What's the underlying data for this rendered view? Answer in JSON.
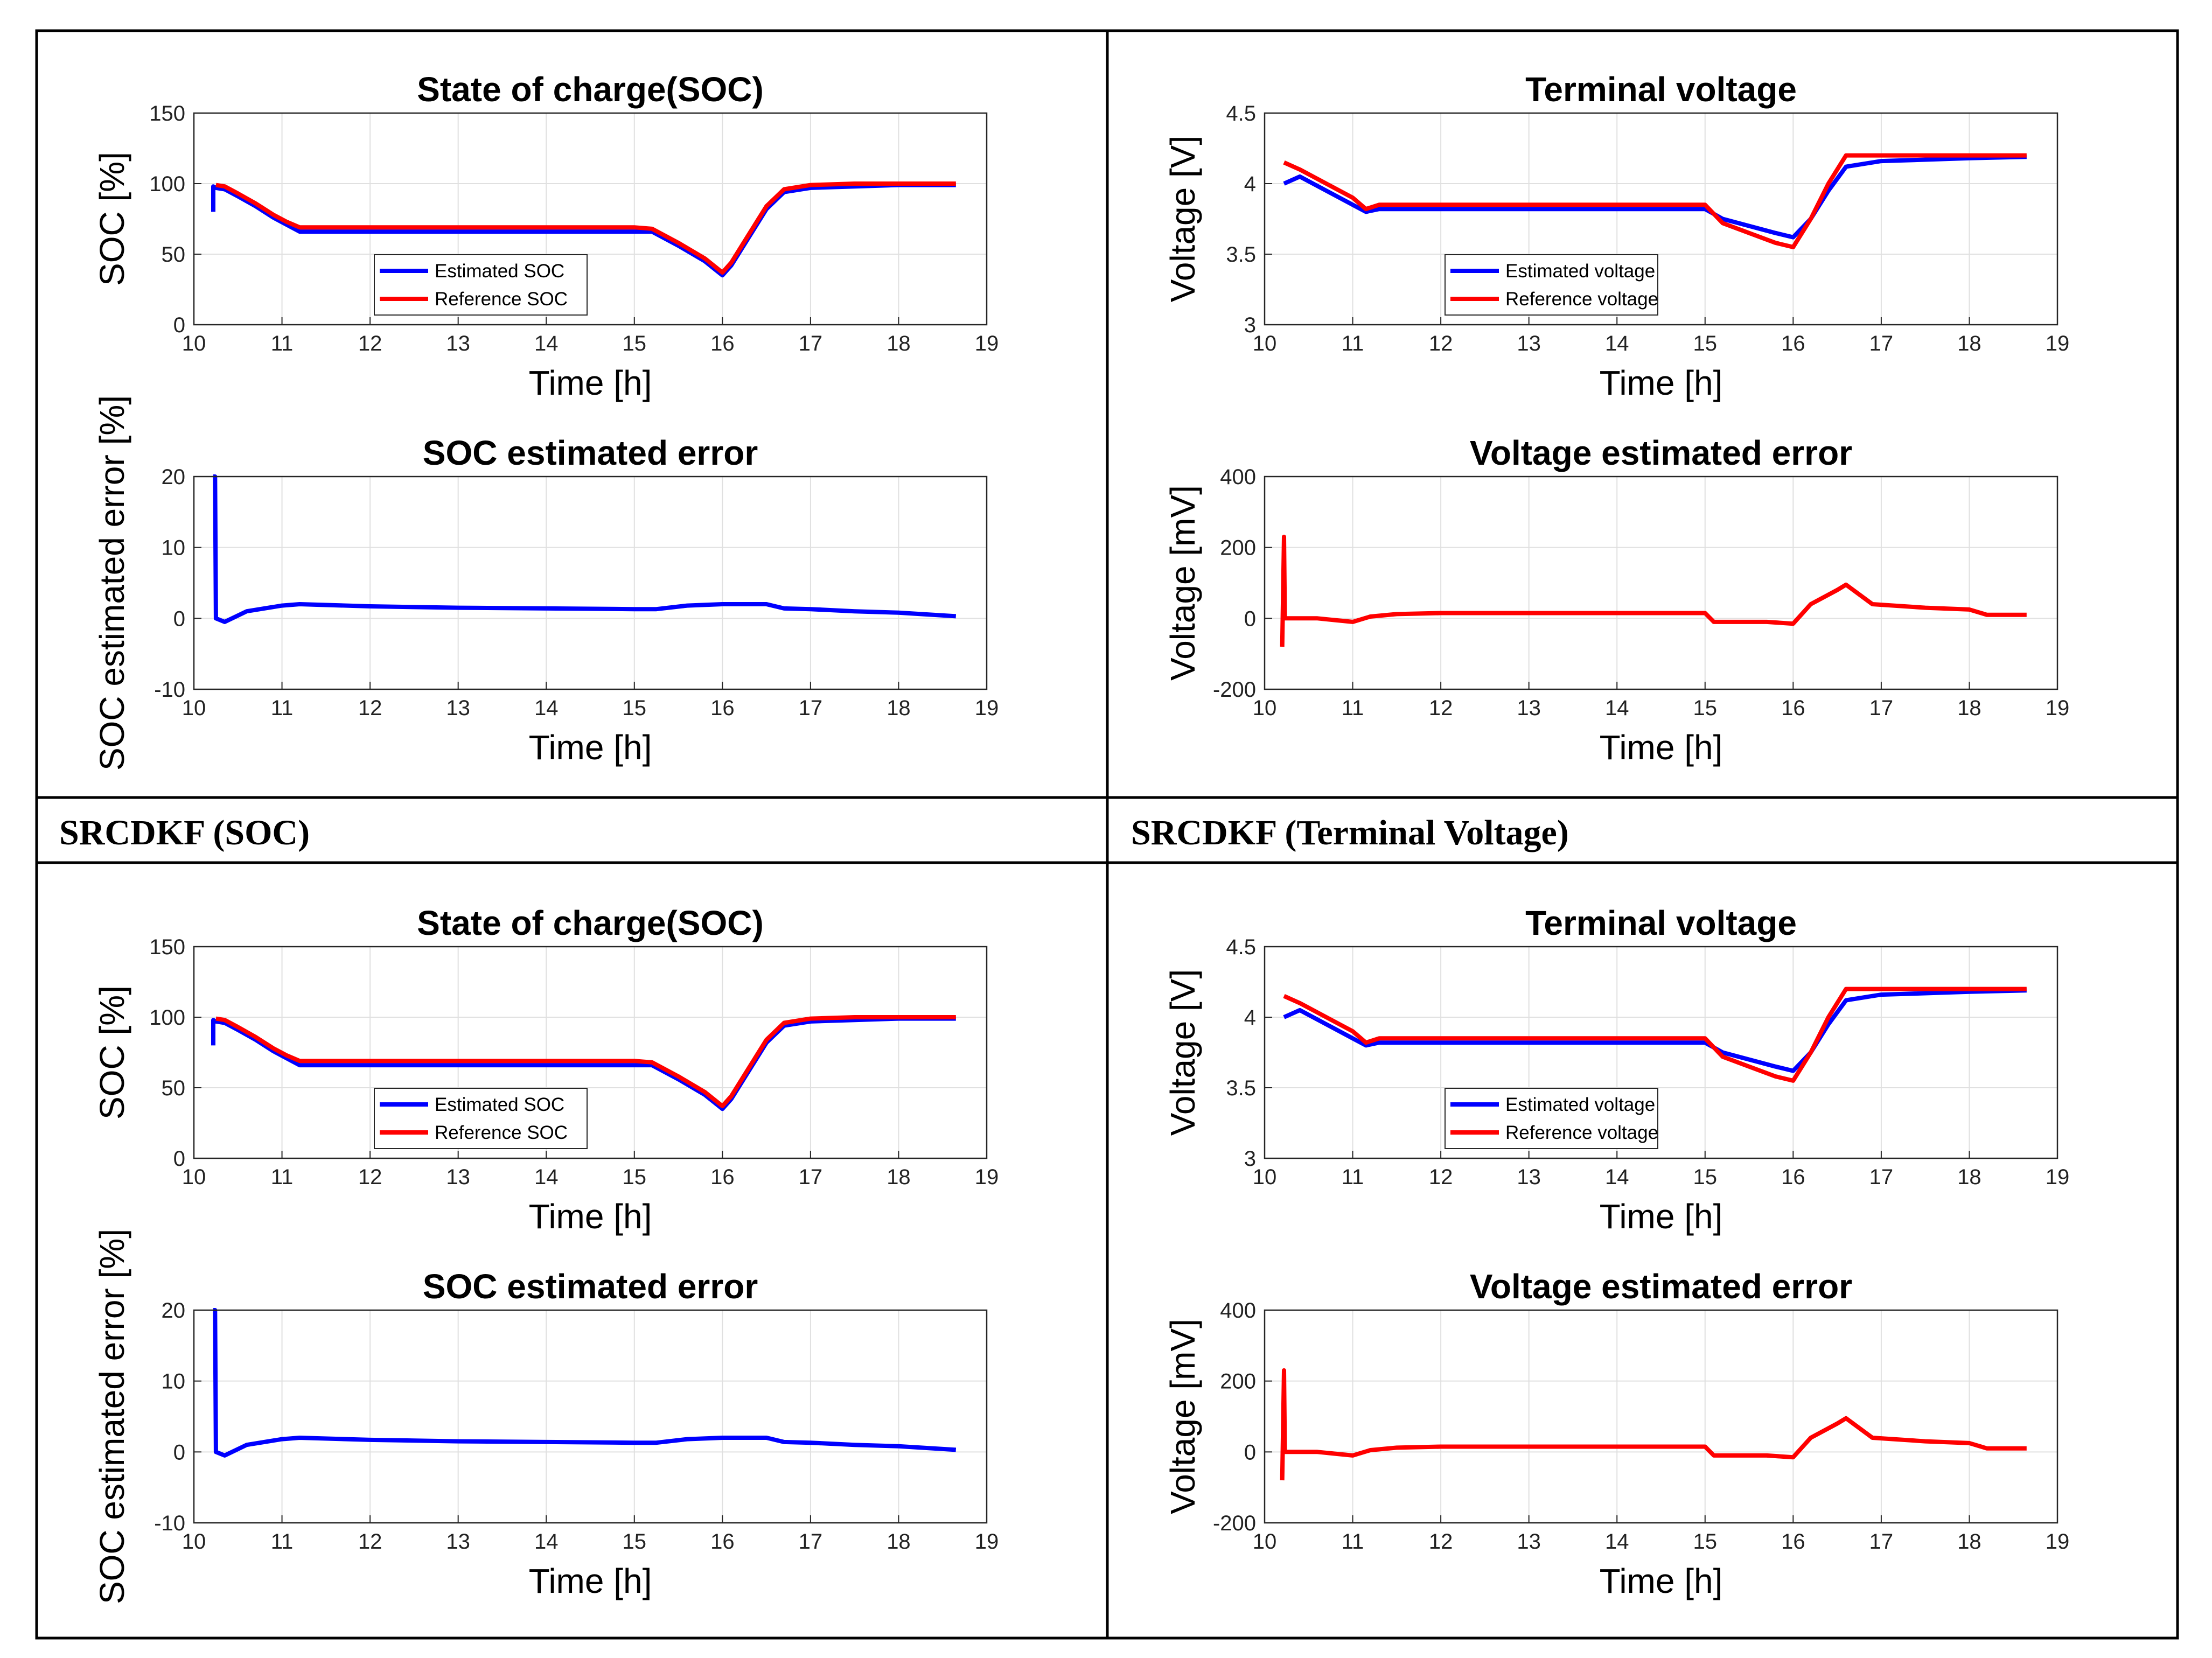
{
  "table": {
    "captions": [
      {
        "text": "SRCDKF (SOC)"
      },
      {
        "text": "SRCDKF (Terminal Voltage)"
      }
    ]
  },
  "chart_data": [
    {
      "type": "line",
      "title": "State of charge(SOC)",
      "xlabel": "Time [h]",
      "ylabel": "SOC [%]",
      "xlim": [
        10,
        19
      ],
      "ylim": [
        0,
        150
      ],
      "xticks": [
        10,
        11,
        12,
        13,
        14,
        15,
        16,
        17,
        18,
        19
      ],
      "yticks": [
        0,
        50,
        100,
        150
      ],
      "grid": true,
      "legend_position": "bottom-left",
      "series": [
        {
          "name": "Estimated SOC",
          "color": "#0000ff",
          "x": [
            10.22,
            10.22,
            10.25,
            10.35,
            10.5,
            10.7,
            10.9,
            11.05,
            11.2,
            12,
            13,
            14,
            15,
            15.2,
            15.5,
            15.8,
            16.0,
            16.1,
            16.3,
            16.5,
            16.7,
            17.0,
            17.5,
            18.0,
            18.65
          ],
          "y": [
            80,
            98,
            97,
            96,
            91,
            84,
            76,
            71,
            66,
            66,
            66,
            66,
            66,
            66,
            56,
            45,
            35,
            42,
            62,
            82,
            94,
            97,
            98,
            99,
            99
          ]
        },
        {
          "name": "Reference SOC",
          "color": "#ff0000",
          "x": [
            10.25,
            10.35,
            10.5,
            10.7,
            10.9,
            11.05,
            11.2,
            12,
            13,
            14,
            15,
            15.2,
            15.5,
            15.8,
            16.0,
            16.1,
            16.3,
            16.5,
            16.7,
            17.0,
            17.5,
            18.0,
            18.65
          ],
          "y": [
            99,
            98,
            93,
            86,
            78,
            73,
            69,
            69,
            69,
            69,
            69,
            68,
            58,
            47,
            37,
            44,
            64,
            84,
            96,
            99,
            100,
            100,
            100
          ]
        }
      ]
    },
    {
      "type": "line",
      "title": "SOC estimated error",
      "xlabel": "Time [h]",
      "ylabel": "SOC estimated error [%]",
      "xlim": [
        10,
        19
      ],
      "ylim": [
        -10,
        20
      ],
      "xticks": [
        10,
        11,
        12,
        13,
        14,
        15,
        16,
        17,
        18,
        19
      ],
      "yticks": [
        -10,
        0,
        10,
        20
      ],
      "grid": true,
      "series": [
        {
          "color": "#0000ff",
          "x": [
            10.22,
            10.24,
            10.25,
            10.35,
            10.6,
            11.0,
            11.2,
            12,
            13,
            14,
            15,
            15.25,
            15.6,
            16.0,
            16.5,
            16.7,
            17.0,
            17.5,
            18.0,
            18.65
          ],
          "y": [
            20,
            20,
            0,
            -0.5,
            1,
            1.8,
            2,
            1.7,
            1.5,
            1.4,
            1.3,
            1.3,
            1.8,
            2,
            2,
            1.4,
            1.3,
            1.0,
            0.8,
            0.3
          ]
        }
      ]
    },
    {
      "type": "line",
      "title": "Terminal voltage",
      "xlabel": "Time [h]",
      "ylabel": "Voltage [V]",
      "xlim": [
        10,
        19
      ],
      "ylim": [
        3,
        4.5
      ],
      "xticks": [
        10,
        11,
        12,
        13,
        14,
        15,
        16,
        17,
        18,
        19
      ],
      "yticks": [
        3,
        3.5,
        4,
        4.5
      ],
      "grid": true,
      "legend_position": "bottom-left",
      "series": [
        {
          "name": "Estimated voltage",
          "color": "#0000ff",
          "x": [
            10.22,
            10.4,
            10.7,
            11.0,
            11.15,
            11.3,
            12,
            13,
            14,
            15,
            15.2,
            15.5,
            15.8,
            16.0,
            16.2,
            16.4,
            16.6,
            17.0,
            17.5,
            18.0,
            18.65
          ],
          "y": [
            4.0,
            4.05,
            3.95,
            3.85,
            3.8,
            3.82,
            3.82,
            3.82,
            3.82,
            3.82,
            3.75,
            3.7,
            3.65,
            3.62,
            3.75,
            3.95,
            4.12,
            4.16,
            4.17,
            4.18,
            4.19
          ]
        },
        {
          "name": "Reference voltage",
          "color": "#ff0000",
          "x": [
            10.22,
            10.4,
            10.7,
            11.0,
            11.15,
            11.3,
            12,
            13,
            14,
            15,
            15.2,
            15.5,
            15.8,
            16.0,
            16.2,
            16.4,
            16.6,
            17.0,
            17.5,
            18.0,
            18.65
          ],
          "y": [
            4.15,
            4.1,
            4.0,
            3.9,
            3.82,
            3.85,
            3.85,
            3.85,
            3.85,
            3.85,
            3.72,
            3.65,
            3.58,
            3.55,
            3.75,
            4.0,
            4.2,
            4.2,
            4.2,
            4.2,
            4.2
          ]
        }
      ]
    },
    {
      "type": "line",
      "title": "Voltage estimated error",
      "xlabel": "Time [h]",
      "ylabel": "Voltage [mV]",
      "xlim": [
        10,
        19
      ],
      "ylim": [
        -200,
        400
      ],
      "xticks": [
        10,
        11,
        12,
        13,
        14,
        15,
        16,
        17,
        18,
        19
      ],
      "yticks": [
        -200,
        0,
        200,
        400
      ],
      "grid": true,
      "series": [
        {
          "color": "#ff0000",
          "x": [
            10.2,
            10.22,
            10.23,
            10.4,
            10.6,
            10.8,
            11.0,
            11.2,
            11.5,
            12,
            13,
            14,
            15,
            15.1,
            15.4,
            15.7,
            16.0,
            16.2,
            16.5,
            16.6,
            16.9,
            17.5,
            18.0,
            18.2,
            18.65
          ],
          "y": [
            -80,
            230,
            0,
            0,
            0,
            -5,
            -10,
            5,
            12,
            15,
            15,
            15,
            15,
            -10,
            -10,
            -10,
            -15,
            40,
            80,
            95,
            40,
            30,
            25,
            10,
            10
          ]
        }
      ]
    }
  ]
}
